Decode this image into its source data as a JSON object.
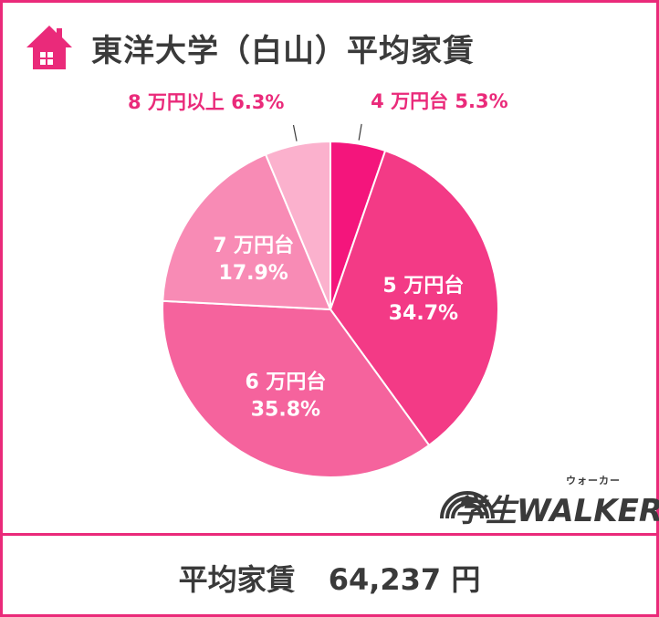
{
  "title": "東洋大学（白山）平均家賃",
  "icons": {
    "house": "house-icon"
  },
  "colors": {
    "frame": "#ea2a7a",
    "accent": "#ea2a7a",
    "text": "#3a3a3a"
  },
  "chart_data": {
    "type": "pie",
    "title": "東洋大学（白山）平均家賃",
    "slices": [
      {
        "label": "4 万円台",
        "value": 5.3,
        "value_label": "5.3%",
        "color": "#f4157c"
      },
      {
        "label": "5 万円台",
        "value": 34.7,
        "value_label": "34.7%",
        "color": "#f33a86"
      },
      {
        "label": "6 万円台",
        "value": 35.8,
        "value_label": "35.8%",
        "color": "#f5639d"
      },
      {
        "label": "7 万円台",
        "value": 17.9,
        "value_label": "17.9%",
        "color": "#f88bb5"
      },
      {
        "label": "8 万円以上",
        "value": 6.3,
        "value_label": "6.3%",
        "color": "#fbb1cd"
      }
    ]
  },
  "footer": {
    "label": "平均家賃",
    "amount": "64,237 円"
  },
  "logo": {
    "kana": "ウォーカー",
    "text": "学生WALKER"
  }
}
